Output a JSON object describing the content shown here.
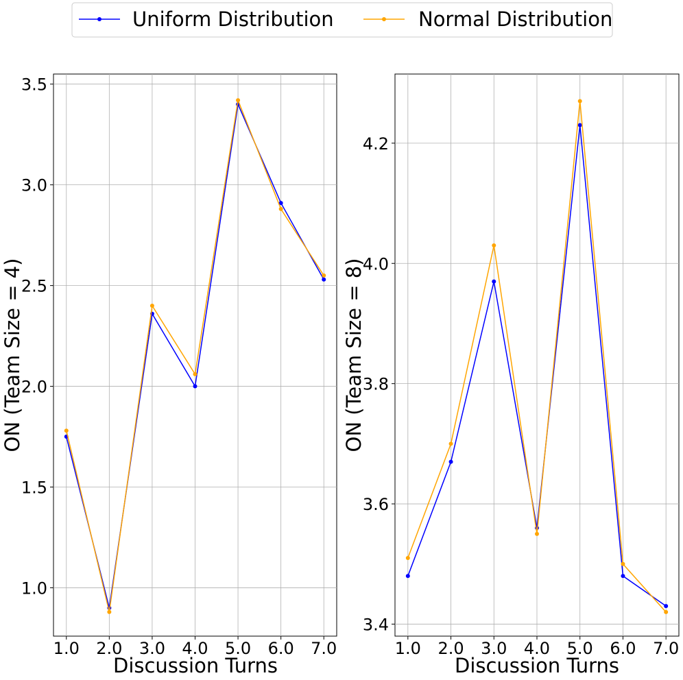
{
  "legend": {
    "placement": "top-center",
    "entries": [
      {
        "label": "Uniform Distribution",
        "color": "#0000ff"
      },
      {
        "label": "Normal Distribution",
        "color": "#ffa500"
      }
    ]
  },
  "chart_data": [
    {
      "type": "line",
      "xlabel": "Discussion Turns",
      "ylabel": "ON (Team Size = 4)",
      "x": [
        1,
        2,
        3,
        4,
        5,
        6,
        7
      ],
      "xticks": [
        "1.0",
        "2.0",
        "3.0",
        "4.0",
        "5.0",
        "6.0",
        "7.0"
      ],
      "xlim": [
        0.7,
        7.3
      ],
      "yticks": [
        "1.0",
        "1.5",
        "2.0",
        "2.5",
        "3.0",
        "3.5"
      ],
      "ylim": [
        0.76,
        3.55
      ],
      "grid": true,
      "series": [
        {
          "name": "Uniform Distribution",
          "color": "#0000ff",
          "values": [
            1.75,
            0.9,
            2.36,
            2.0,
            3.4,
            2.91,
            2.53
          ]
        },
        {
          "name": "Normal Distribution",
          "color": "#ffa500",
          "values": [
            1.78,
            0.88,
            2.4,
            2.06,
            3.42,
            2.88,
            2.55
          ]
        }
      ]
    },
    {
      "type": "line",
      "xlabel": "Discussion Turns",
      "ylabel": "ON (Team Size = 8)",
      "x": [
        1,
        2,
        3,
        4,
        5,
        6,
        7
      ],
      "xticks": [
        "1.0",
        "2.0",
        "3.0",
        "4.0",
        "5.0",
        "6.0",
        "7.0"
      ],
      "xlim": [
        0.7,
        7.3
      ],
      "yticks": [
        "3.4",
        "3.6",
        "3.8",
        "4.0",
        "4.2"
      ],
      "ylim": [
        3.38,
        4.315
      ],
      "grid": true,
      "series": [
        {
          "name": "Uniform Distribution",
          "color": "#0000ff",
          "values": [
            3.48,
            3.67,
            3.97,
            3.56,
            4.23,
            3.48,
            3.43
          ]
        },
        {
          "name": "Normal Distribution",
          "color": "#ffa500",
          "values": [
            3.51,
            3.7,
            4.03,
            3.55,
            4.27,
            3.5,
            3.42
          ]
        }
      ]
    }
  ]
}
